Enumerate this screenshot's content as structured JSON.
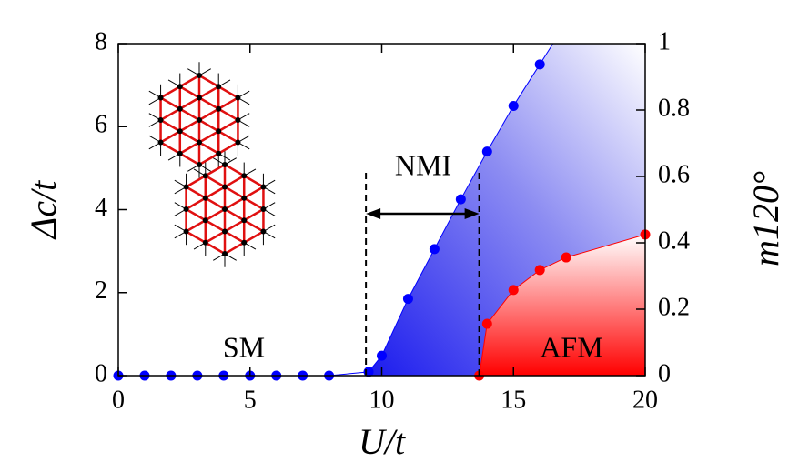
{
  "chart_data": {
    "type": "phase",
    "xlabel": "U/t",
    "ylabel": "Δc/t",
    "y2label": "m120°",
    "xlim": [
      0,
      20
    ],
    "xticks": [
      0,
      5,
      10,
      15,
      20
    ],
    "ylim": [
      0,
      8
    ],
    "yticks": [
      0,
      2,
      4,
      6,
      8
    ],
    "y2lim": [
      0,
      1
    ],
    "y2ticks": [
      0,
      0.2,
      0.4,
      0.6,
      0.8,
      1
    ],
    "series": [
      {
        "name": "Δc/t",
        "color": "#0000ff",
        "axis": "y",
        "x": [
          0,
          1,
          2,
          3,
          4,
          5,
          6,
          7,
          8,
          9.5,
          10,
          11,
          12,
          13,
          14,
          15,
          16
        ],
        "values": [
          0,
          0,
          0,
          0,
          0,
          0,
          0,
          0,
          0,
          0.09,
          0.48,
          1.85,
          3.05,
          4.25,
          5.4,
          6.5,
          7.5
        ]
      },
      {
        "name": "m120°",
        "color": "#ff0000",
        "axis": "y2",
        "x": [
          13.7,
          14,
          15,
          16,
          17,
          20
        ],
        "values": [
          0,
          0.156,
          0.258,
          0.318,
          0.356,
          0.425
        ]
      }
    ],
    "boundaries": [
      9.4,
      13.7
    ],
    "annotations": [
      "SM",
      "NMI",
      "AFM"
    ]
  }
}
